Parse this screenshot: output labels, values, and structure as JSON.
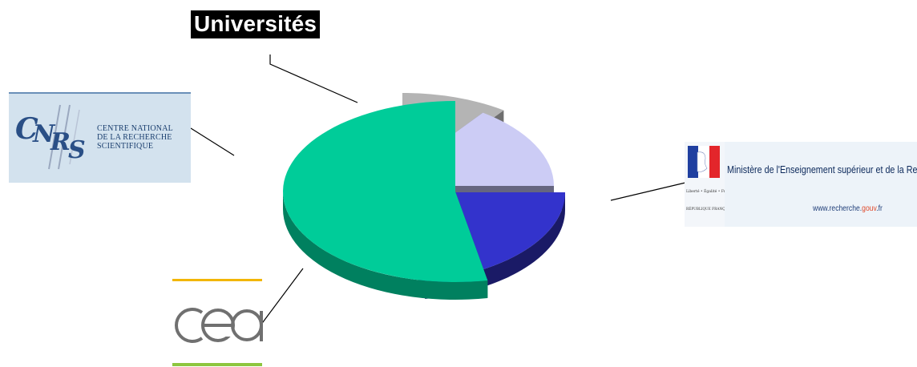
{
  "chart_data": {
    "type": "pie",
    "style": "3d-exploded",
    "slices": [
      {
        "name": "Universités",
        "value": 10,
        "color": "#b4b4b4",
        "side_color": "#6e6e6e"
      },
      {
        "name": "CNRS",
        "value": 15,
        "color": "#ccccf5",
        "side_color": "#666680"
      },
      {
        "name": "CEA",
        "value": 22,
        "color": "#3333cc",
        "side_color": "#1a1a66"
      },
      {
        "name": "Ministère de l'Enseignement supérieur et de la Recherche",
        "value": 53,
        "color": "#00cc99",
        "side_color": "#00805f"
      }
    ],
    "labels": {
      "universites": "Universités"
    }
  },
  "logos": {
    "cnrs": {
      "line1": "CENTRE NATIONAL",
      "line2": "DE LA RECHERCHE",
      "line3": "SCIENTIFIQUE"
    },
    "ministere": {
      "title": "Ministère de l'Enseignement supérieur et de la Recherche",
      "url_prefix": "www.recherche.",
      "url_accent": "gouv",
      "url_suffix": ".fr",
      "devise": "Liberté • Égalité • Fraternité",
      "republique": "RÉPUBLIQUE FRANÇAISE"
    }
  }
}
